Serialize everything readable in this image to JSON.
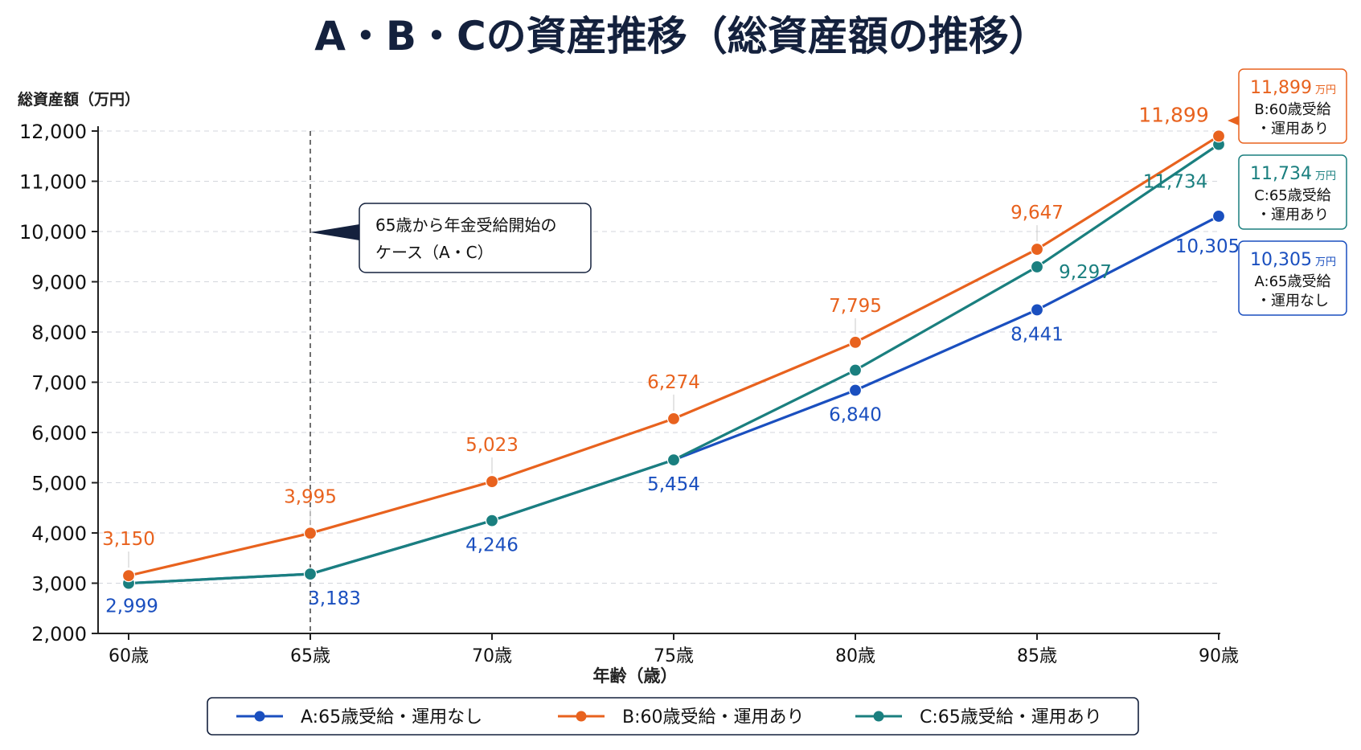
{
  "chart_data": {
    "type": "line",
    "title": "A・B・Cの資産推移（総資産額の推移）",
    "ylabel": "総資産額（万円）",
    "xlabel": "年齢（歳）",
    "categories": [
      "60歳",
      "65歳",
      "70歳",
      "75歳",
      "80歳",
      "85歳",
      "90歳"
    ],
    "ylim": [
      2000,
      12000
    ],
    "yticks": [
      2000,
      3000,
      4000,
      5000,
      6000,
      7000,
      8000,
      9000,
      10000,
      11000,
      12000
    ],
    "ytick_labels": [
      "2,000",
      "3,000",
      "4,000",
      "5,000",
      "6,000",
      "7,000",
      "8,000",
      "9,000",
      "10,000",
      "11,000",
      "12,000"
    ],
    "grid": true,
    "legend_position": "bottom",
    "series": [
      {
        "key": "a",
        "name": "A:65歳受給・運用なし",
        "color": "#1a4fbf",
        "values": [
          2999,
          3183,
          4246,
          5454,
          6840,
          8441,
          10305
        ],
        "labels": [
          "2,999",
          "3,183",
          "4,246",
          "5,454",
          "6,840",
          "8,441",
          "10,305"
        ]
      },
      {
        "key": "b",
        "name": "B:60歳受給・運用あり",
        "color": "#e8621e",
        "values": [
          3150,
          3995,
          5023,
          6274,
          7795,
          9647,
          11899
        ],
        "labels": [
          "3,150",
          "3,995",
          "5,023",
          "6,274",
          "7,795",
          "9,647",
          "11,899"
        ]
      },
      {
        "key": "c",
        "name": "C:65歳受給・運用あり",
        "color": "#1a7f7f",
        "values": [
          2999,
          3183,
          4246,
          5454,
          7240,
          9297,
          11734
        ],
        "labels": [
          "",
          "",
          "",
          "",
          "",
          "9,297",
          "11,734"
        ]
      }
    ],
    "annotation": {
      "line1": "65歳から年金受給開始の",
      "line2": "ケース（A・C）",
      "at_category": "65歳"
    },
    "end_boxes": [
      {
        "series": "b",
        "value": "11,899",
        "unit": "万円",
        "line1": "B:60歳受給",
        "line2": "・運用あり",
        "color": "#e8621e"
      },
      {
        "series": "c",
        "value": "11,734",
        "unit": "万円",
        "line1": "C:65歳受給",
        "line2": "・運用あり",
        "color": "#1a7f7f"
      },
      {
        "series": "a",
        "value": "10,305",
        "unit": "万円",
        "line1": "A:65歳受給",
        "line2": "・運用なし",
        "color": "#1a4fbf"
      }
    ]
  }
}
